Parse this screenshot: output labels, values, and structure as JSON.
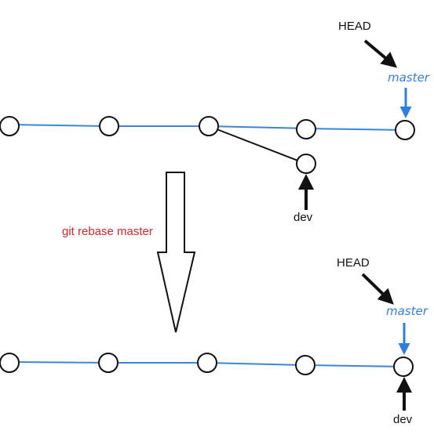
{
  "colors": {
    "branch_line": "#3a86d8",
    "master_label": "#2f7fe0",
    "command": "#e0242a",
    "stroke": "#111111"
  },
  "top": {
    "head_label": "HEAD",
    "master_label": "master",
    "dev_label": "dev"
  },
  "command": {
    "text": "git rebase master"
  },
  "bottom": {
    "head_label": "HEAD",
    "master_label": "master",
    "dev_label": "dev"
  }
}
